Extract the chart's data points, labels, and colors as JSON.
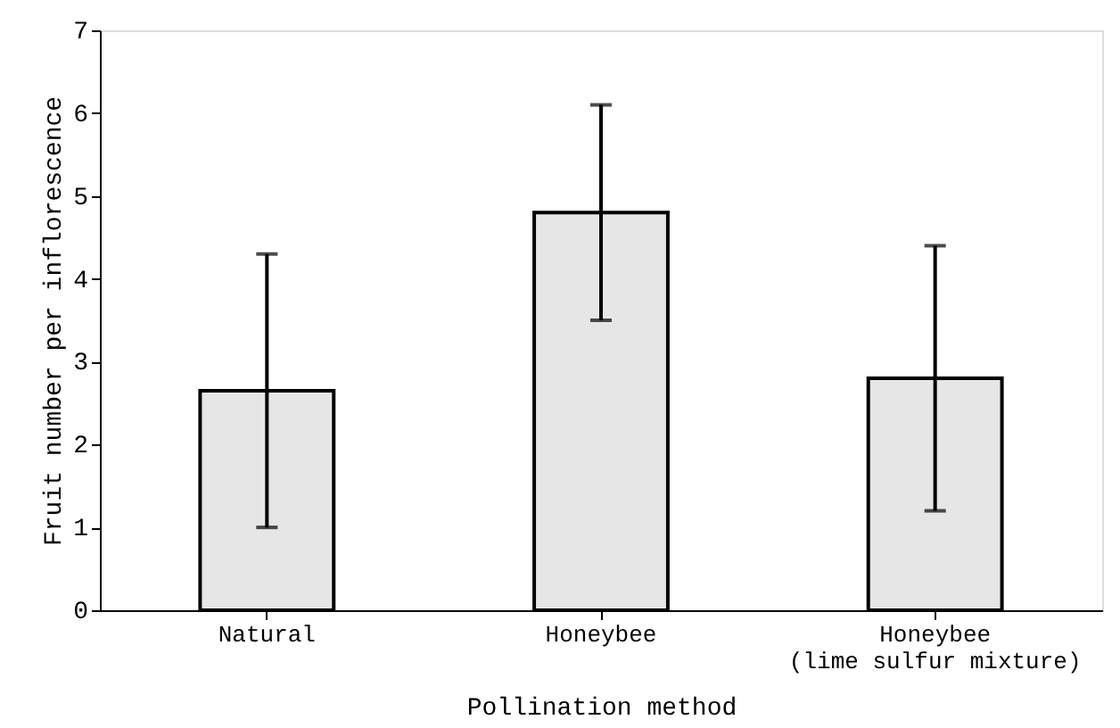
{
  "chart_data": {
    "type": "bar",
    "xlabel": "Pollination method",
    "ylabel": "Fruit number per inflorescence",
    "categories": [
      "Natural",
      "Honeybee",
      "Honeybee\n(lime sulfur mixture)"
    ],
    "values": [
      2.65,
      4.8,
      2.8
    ],
    "errors": [
      1.65,
      1.3,
      1.6
    ],
    "color": "#e6e6e6",
    "ylim": [
      0,
      7
    ],
    "yticks": [
      0,
      1,
      2,
      3,
      4,
      5,
      6,
      7
    ],
    "grid": false
  }
}
